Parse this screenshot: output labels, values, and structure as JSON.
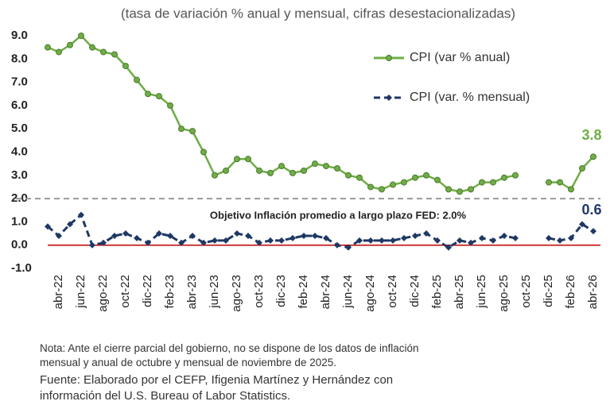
{
  "chart_data": {
    "type": "line",
    "subtitle": "(tasa de variación % anual y mensual, cifras desestacionalizadas)",
    "categories": [
      null,
      "abr-22",
      null,
      "jun-22",
      null,
      "ago-22",
      null,
      "oct-22",
      null,
      "dic-22",
      null,
      "feb-23",
      null,
      "abr-23",
      null,
      "jun-23",
      null,
      "ago-23",
      null,
      "oct-23",
      null,
      "dic-23",
      null,
      "feb-24",
      null,
      "abr-24",
      null,
      "jun-24",
      null,
      "ago-24",
      null,
      "oct-24",
      null,
      "dic-24",
      null,
      "feb-25",
      null,
      "abr-25",
      null,
      "jun-25",
      null,
      "ago-25",
      null,
      "oct-25",
      null,
      "dic-25",
      null,
      "feb-26",
      null,
      "abr-26"
    ],
    "series": [
      {
        "name": "CPI (var % anual)",
        "color": "#70ad47",
        "style": "solid",
        "marker": "circle",
        "values": [
          8.5,
          8.3,
          8.6,
          9.0,
          8.5,
          8.3,
          8.2,
          7.7,
          7.1,
          6.5,
          6.4,
          6.0,
          5.0,
          4.9,
          4.0,
          3.0,
          3.2,
          3.7,
          3.7,
          3.2,
          3.1,
          3.4,
          3.1,
          3.2,
          3.5,
          3.4,
          3.3,
          3.0,
          2.9,
          2.5,
          2.4,
          2.6,
          2.7,
          2.9,
          3.0,
          2.8,
          2.4,
          2.3,
          2.4,
          2.7,
          2.7,
          2.9,
          3.0,
          null,
          null,
          2.7,
          2.7,
          2.4,
          3.3,
          3.8
        ]
      },
      {
        "name": "CPI (var. % mensual)",
        "color": "#1f3864",
        "style": "dashed",
        "marker": "diamond",
        "values": [
          0.8,
          0.4,
          0.9,
          1.3,
          0.0,
          0.1,
          0.4,
          0.5,
          0.3,
          0.1,
          0.5,
          0.4,
          0.1,
          0.4,
          0.1,
          0.2,
          0.2,
          0.5,
          0.4,
          0.1,
          0.2,
          0.2,
          0.3,
          0.4,
          0.4,
          0.3,
          0.0,
          -0.1,
          0.2,
          0.2,
          0.2,
          0.2,
          0.3,
          0.4,
          0.5,
          0.2,
          -0.1,
          0.2,
          0.1,
          0.3,
          0.2,
          0.4,
          0.3,
          null,
          null,
          0.3,
          0.2,
          0.3,
          0.9,
          0.6
        ]
      }
    ],
    "ylim": [
      -1,
      9
    ],
    "yticks": [
      {
        "value": -1,
        "label": "-1.0"
      },
      {
        "value": 0,
        "label": "0.0"
      },
      {
        "value": 1,
        "label": "1.0"
      },
      {
        "value": 2,
        "label": "2.0"
      },
      {
        "value": 3,
        "label": "3.0"
      },
      {
        "value": 4,
        "label": "4.0"
      },
      {
        "value": 5,
        "label": "5.0"
      },
      {
        "value": 6,
        "label": "6.0"
      },
      {
        "value": 7,
        "label": "7.0"
      },
      {
        "value": 8,
        "label": "8.0"
      },
      {
        "value": 9,
        "label": "9.0"
      }
    ],
    "target_line": 2,
    "target_annotation": "Objetivo Inflación promedio a largo plazo FED: 2.0%",
    "legend": "upper right",
    "grid": false
  },
  "notes": [
    "Nota: Ante el cierre parcial del gobierno, no se dispone de los datos de inflación",
    "mensual y anual de octubre y mensual de noviembre de 2025."
  ],
  "source": [
    "Fuente: Elaborado por el CEFP, Ifigenia Martínez y Hernández con",
    "información del U.S. Bureau of Labor Statistics."
  ]
}
